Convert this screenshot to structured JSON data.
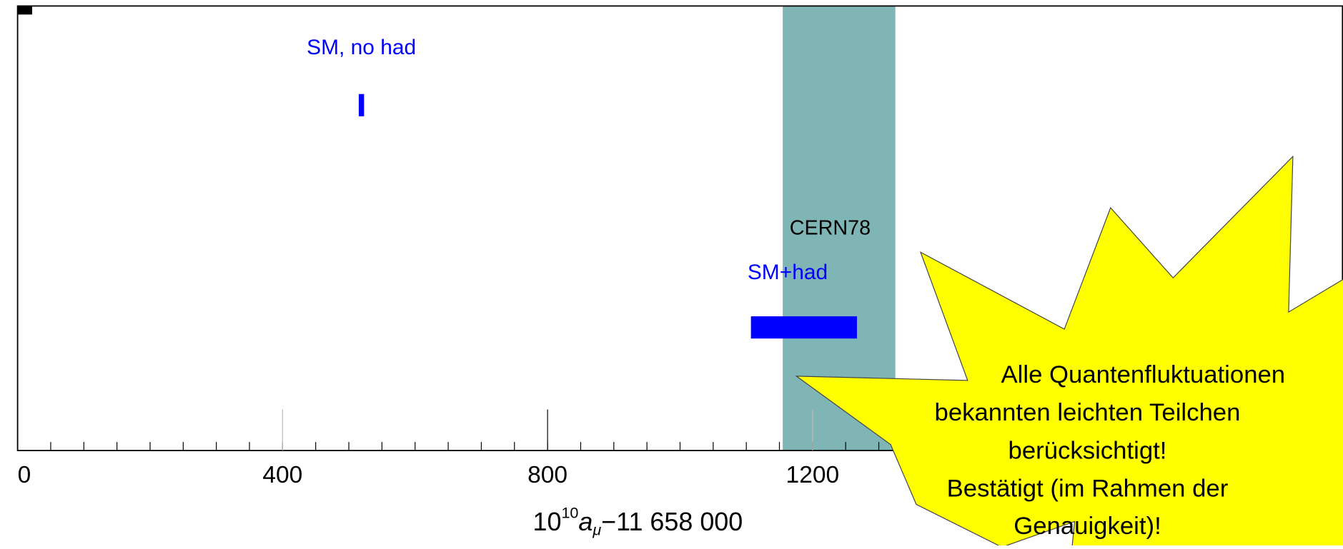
{
  "chart_data": {
    "type": "interval",
    "x_label": {
      "base": "10",
      "power": "10",
      "symbol": "a",
      "sub": "μ",
      "rest": "−11 658 000"
    },
    "xlim": [
      0,
      2000
    ],
    "xticks": [
      0,
      400,
      800,
      1200
    ],
    "band": {
      "name": "CERN78",
      "color": "#7fb5b5",
      "value": 1240,
      "error": 85
    },
    "series": [
      {
        "name": "SM, no had",
        "color": "#0000ff",
        "value": 519,
        "error": 4
      },
      {
        "name": "SM+had",
        "color": "#0000ff",
        "value": 1187,
        "error": 80
      }
    ],
    "annotation": [
      "Alle Quantenfluktuationen",
      "bekannten leichten Teilchen",
      "berücksichtigt!",
      "Bestätigt (im Rahmen der",
      "Genauigkeit)!"
    ],
    "annotation_color": "#ffff00"
  }
}
